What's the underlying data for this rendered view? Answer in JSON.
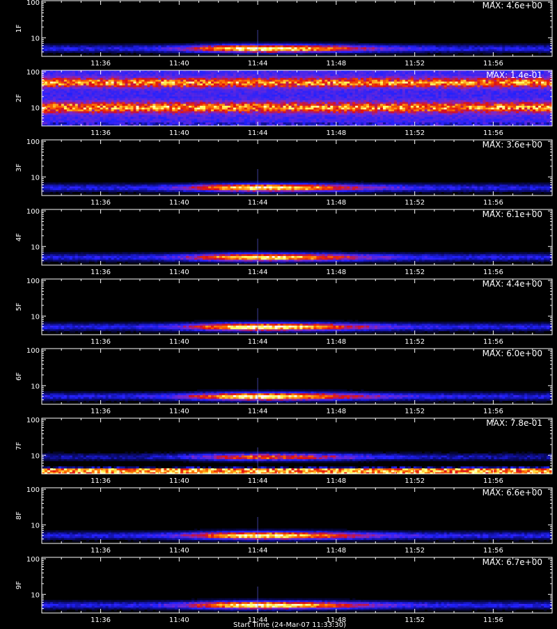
{
  "chart_data": {
    "type": "heatmap",
    "colormap": [
      "#000000",
      "#0a0a6e",
      "#2222ff",
      "#7a2ad0",
      "#e01010",
      "#ff7a00",
      "#ffff60",
      "#ffffff"
    ],
    "x_ticks": [
      "11:36",
      "11:40",
      "11:44",
      "11:48",
      "11:52",
      "11:56"
    ],
    "x_range": [
      "11:33",
      "11:59"
    ],
    "y_scale": "log",
    "y_ticks": [
      "10",
      "100"
    ],
    "y_range": [
      3,
      110
    ],
    "grid": false,
    "panels": [
      {
        "ylabel": "1F",
        "max_label": "MAX: 4.6e+00",
        "pattern": "burst",
        "center": "11:44",
        "intensity": 1.0
      },
      {
        "ylabel": "2F",
        "max_label": "MAX: 1.4e-01",
        "pattern": "noise",
        "intensity": 0.85
      },
      {
        "ylabel": "3F",
        "max_label": "MAX: 3.6e+00",
        "pattern": "burst",
        "center": "11:44",
        "intensity": 0.95
      },
      {
        "ylabel": "4F",
        "max_label": "MAX: 6.1e+00",
        "pattern": "burst",
        "center": "11:44",
        "intensity": 0.9
      },
      {
        "ylabel": "5F",
        "max_label": "MAX: 4.4e+00",
        "pattern": "burst",
        "center": "11:44",
        "intensity": 1.0
      },
      {
        "ylabel": "6F",
        "max_label": "MAX: 6.0e+00",
        "pattern": "burst",
        "center": "11:44",
        "intensity": 1.0
      },
      {
        "ylabel": "7F",
        "max_label": "MAX: 7.8e-01",
        "pattern": "burst_lowband",
        "center": "11:44",
        "intensity": 0.7
      },
      {
        "ylabel": "8F",
        "max_label": "MAX: 6.6e+00",
        "pattern": "burst",
        "center": "11:44",
        "intensity": 0.95
      },
      {
        "ylabel": "9F",
        "max_label": "MAX: 6.7e+00",
        "pattern": "burst",
        "center": "11:44",
        "intensity": 1.0
      }
    ]
  },
  "bottom_caption": "Start Time (24-Mar-07 11:33:30)"
}
